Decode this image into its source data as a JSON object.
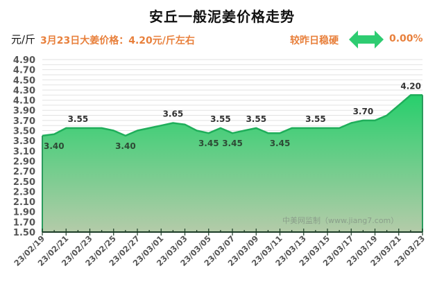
{
  "header": {
    "title": "安丘一般泥姜价格走势",
    "unit": "元/斤",
    "headline": "3月23日大姜价格：4.20元/斤左右",
    "compare_label": "较昨日稳硬",
    "compare_icon": "double-arrow-icon",
    "change_pct": "0.00%"
  },
  "colors": {
    "accent_text": "#e8803c",
    "line": "#1fae5a",
    "fill_top": "#27cf6c",
    "fill_bottom": "#b4cba9",
    "arrow": "#2ecc71"
  },
  "watermark": "中美网监制（www.jiang7.com）",
  "chart_data": {
    "type": "area",
    "title": "安丘一般泥姜价格走势",
    "xlabel": "",
    "ylabel": "元/斤",
    "ylim": [
      1.5,
      4.9
    ],
    "y_ticks": [
      "4.90",
      "4.70",
      "4.50",
      "4.30",
      "4.10",
      "3.90",
      "3.70",
      "3.50",
      "3.30",
      "3.10",
      "2.90",
      "2.70",
      "2.50",
      "2.30",
      "2.10",
      "1.90",
      "1.70",
      "1.50"
    ],
    "x_tick_labels": [
      "23/02/19",
      "23/02/21",
      "23/02/23",
      "23/02/25",
      "23/02/27",
      "23/03/01",
      "23/03/03",
      "23/03/05",
      "23/03/07",
      "23/03/09",
      "23/03/11",
      "23/03/13",
      "23/03/15",
      "23/03/17",
      "23/03/19",
      "23/03/21",
      "23/03/23"
    ],
    "grid": true,
    "legend": "none",
    "x": [
      "23/02/19",
      "23/02/20",
      "23/02/21",
      "23/02/22",
      "23/02/23",
      "23/02/24",
      "23/02/25",
      "23/02/26",
      "23/02/27",
      "23/02/28",
      "23/03/01",
      "23/03/02",
      "23/03/03",
      "23/03/04",
      "23/03/05",
      "23/03/06",
      "23/03/07",
      "23/03/08",
      "23/03/09",
      "23/03/10",
      "23/03/11",
      "23/03/12",
      "23/03/13",
      "23/03/14",
      "23/03/15",
      "23/03/16",
      "23/03/17",
      "23/03/18",
      "23/03/19",
      "23/03/20",
      "23/03/21",
      "23/03/22",
      "23/03/23"
    ],
    "values": [
      3.4,
      3.43,
      3.55,
      3.55,
      3.55,
      3.55,
      3.5,
      3.4,
      3.5,
      3.55,
      3.6,
      3.65,
      3.62,
      3.5,
      3.45,
      3.55,
      3.45,
      3.5,
      3.55,
      3.45,
      3.45,
      3.55,
      3.55,
      3.55,
      3.55,
      3.55,
      3.65,
      3.7,
      3.7,
      3.8,
      4.0,
      4.2,
      4.2
    ],
    "annotations": [
      {
        "x": "23/02/19",
        "label": "3.40",
        "pos": "below"
      },
      {
        "x": "23/02/22",
        "label": "3.55",
        "pos": "above"
      },
      {
        "x": "23/02/26",
        "label": "3.40",
        "pos": "below"
      },
      {
        "x": "23/03/02",
        "label": "3.65",
        "pos": "above"
      },
      {
        "x": "23/03/05",
        "label": "3.45",
        "pos": "below"
      },
      {
        "x": "23/03/06",
        "label": "3.55",
        "pos": "above"
      },
      {
        "x": "23/03/07",
        "label": "3.45",
        "pos": "below"
      },
      {
        "x": "23/03/09",
        "label": "3.55",
        "pos": "above"
      },
      {
        "x": "23/03/11",
        "label": "3.45",
        "pos": "below"
      },
      {
        "x": "23/03/14",
        "label": "3.55",
        "pos": "above"
      },
      {
        "x": "23/03/18",
        "label": "3.70",
        "pos": "above"
      },
      {
        "x": "23/03/23",
        "label": "4.20",
        "pos": "above"
      }
    ]
  }
}
